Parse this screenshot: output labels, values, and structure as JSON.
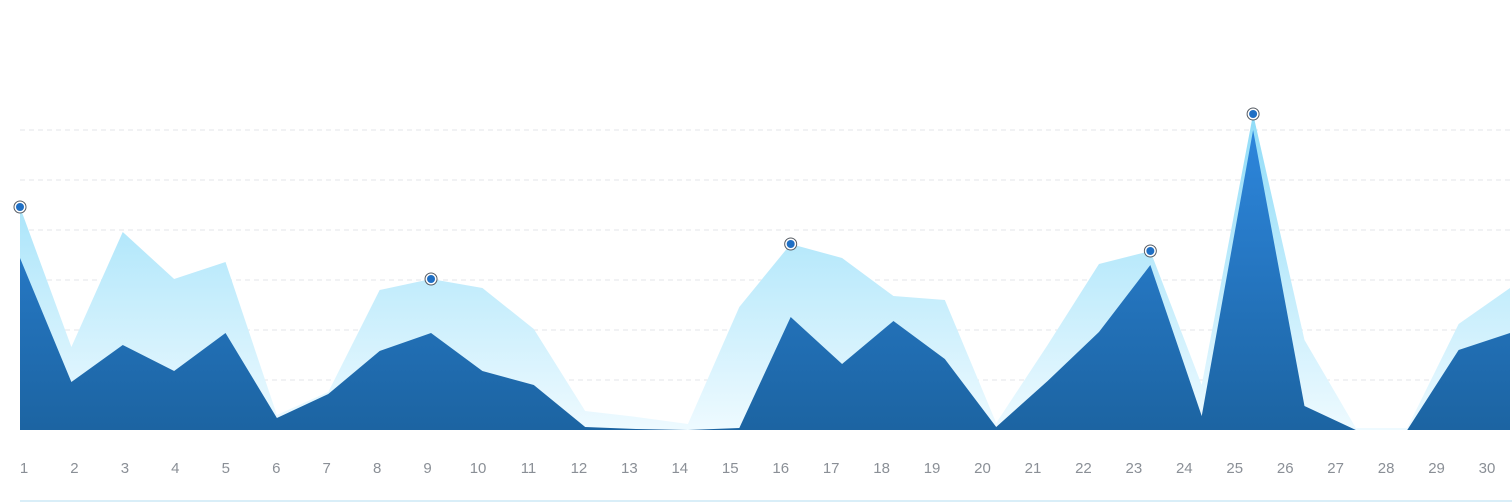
{
  "chart_data": {
    "type": "area",
    "x": [
      1,
      2,
      3,
      4,
      5,
      6,
      7,
      8,
      9,
      10,
      11,
      12,
      13,
      14,
      15,
      16,
      17,
      18,
      19,
      20,
      21,
      22,
      23,
      24,
      25,
      26,
      27,
      28,
      29,
      30
    ],
    "xlim": [
      1,
      30
    ],
    "ylim": [
      0,
      8
    ],
    "gridlines": [
      1,
      2,
      3,
      4,
      5,
      6
    ],
    "grid": true,
    "series": [
      {
        "color": "#a3e4fa",
        "values": [
          4.46,
          1.66,
          3.96,
          3.02,
          3.36,
          0.3,
          0.76,
          2.8,
          3.02,
          2.84,
          2.02,
          0.38,
          0.26,
          0.12,
          2.46,
          3.72,
          3.44,
          2.68,
          2.6,
          0.14,
          1.7,
          3.32,
          3.58,
          0.9,
          6.32,
          1.8,
          0.04,
          0.04,
          2.12,
          2.84
        ],
        "marked_points": [
          0,
          8,
          15,
          22,
          24
        ]
      },
      {
        "color": "#2a80d6",
        "values": [
          3.44,
          0.96,
          1.7,
          1.18,
          1.94,
          0.24,
          0.72,
          1.58,
          1.94,
          1.18,
          0.9,
          0.06,
          0.02,
          0,
          0.04,
          2.26,
          1.32,
          2.18,
          1.42,
          0.06,
          0.98,
          1.96,
          3.3,
          0.28,
          6.0,
          0.48,
          0,
          0,
          1.6,
          1.94
        ]
      }
    ]
  }
}
